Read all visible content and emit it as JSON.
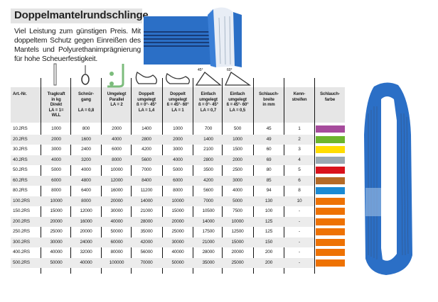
{
  "title": "Doppelmantelrundschlinge",
  "description": "Viel Leistung zum günstigen Preis. Mit doppeltem Schutz gegen Einreißen des Mantels und Polyurethanimprägnierung für hohe Scheuerfestigkeit.",
  "headers": [
    {
      "lines": [
        "Art.-Nr."
      ],
      "icon": ""
    },
    {
      "lines": [
        "Tragkraft",
        "in kg",
        "Direkt",
        "LA = 1=",
        "WLL"
      ],
      "icon": "straight-lift-icon"
    },
    {
      "lines": [
        "Schnür-",
        "gang",
        "",
        "LA = 0,8"
      ],
      "icon": "choke-hitch-icon"
    },
    {
      "lines": [
        "Umgelegt",
        "Parallel",
        "LA = 2"
      ],
      "icon": "parallel-basket-icon"
    },
    {
      "lines": [
        "Doppelt",
        "umgelegt",
        "ß = 0°- 45°",
        "LA = 1,4"
      ],
      "icon": "double-basket-45-icon"
    },
    {
      "lines": [
        "Doppelt",
        "umgelegt",
        "ß = 45°- 60°",
        "LA = 1"
      ],
      "icon": "double-basket-60-icon"
    },
    {
      "lines": [
        "Einfach",
        "umgelegt",
        "ß = 0°- 45°",
        "LA = 0,7"
      ],
      "icon": "single-basket-45-icon"
    },
    {
      "lines": [
        "Einfach",
        "umgelegt",
        "ß = 45°- 60°",
        "LA = 0,5"
      ],
      "icon": "single-basket-60-icon"
    },
    {
      "lines": [
        "Schlauch-",
        "breite",
        "in mm"
      ],
      "icon": ""
    },
    {
      "lines": [
        "Kenn-",
        "streifen"
      ],
      "icon": ""
    },
    {
      "lines": [
        "Schlauch-",
        "farbe"
      ],
      "icon": ""
    }
  ],
  "rows": [
    {
      "cells": [
        "10.2RS",
        "1000",
        "800",
        "2000",
        "1400",
        "1000",
        "700",
        "500",
        "45",
        "1"
      ],
      "color": "#a64b9c"
    },
    {
      "cells": [
        "20.2RS",
        "2000",
        "1600",
        "4000",
        "2800",
        "2000",
        "1400",
        "1000",
        "49",
        "2"
      ],
      "color": "#6cb52d"
    },
    {
      "cells": [
        "30.2RS",
        "3000",
        "2400",
        "6000",
        "4200",
        "3000",
        "2100",
        "1500",
        "60",
        "3"
      ],
      "color": "#ffdd00"
    },
    {
      "cells": [
        "40.2RS",
        "4000",
        "3200",
        "8000",
        "5600",
        "4000",
        "2800",
        "2000",
        "69",
        "4"
      ],
      "color": "#9aa8b2"
    },
    {
      "cells": [
        "50.2RS",
        "5000",
        "4000",
        "10000",
        "7000",
        "5000",
        "3500",
        "2500",
        "80",
        "5"
      ],
      "color": "#d9121b"
    },
    {
      "cells": [
        "60.2RS",
        "6000",
        "4800",
        "12000",
        "8400",
        "6000",
        "4200",
        "3000",
        "85",
        "6"
      ],
      "color": "#b46a26"
    },
    {
      "cells": [
        "80.2RS",
        "8000",
        "6400",
        "16000",
        "11200",
        "8000",
        "5600",
        "4000",
        "94",
        "8"
      ],
      "color": "#1a8ad4"
    },
    {
      "cells": [
        "100.2RS",
        "10000",
        "8000",
        "20000",
        "14000",
        "10000",
        "7000",
        "5000",
        "130",
        "10"
      ],
      "color": "#ee7203"
    },
    {
      "cells": [
        "150.2RS",
        "15000",
        "12000",
        "30000",
        "21000",
        "15000",
        "10500",
        "7500",
        "100",
        "-"
      ],
      "color": "#ee7203"
    },
    {
      "cells": [
        "200.2RS",
        "20000",
        "16000",
        "40000",
        "28000",
        "20000",
        "14000",
        "10000",
        "125",
        "-"
      ],
      "color": "#ee7203"
    },
    {
      "cells": [
        "250.2RS",
        "25000",
        "20000",
        "50000",
        "35000",
        "25000",
        "17500",
        "12500",
        "125",
        "-"
      ],
      "color": "#ee7203"
    },
    {
      "cells": [
        "300.2RS",
        "30000",
        "24000",
        "60000",
        "42000",
        "30000",
        "21000",
        "15000",
        "150",
        "-"
      ],
      "color": "#ee7203"
    },
    {
      "cells": [
        "400.2RS",
        "40000",
        "32000",
        "80000",
        "56000",
        "40000",
        "28000",
        "20000",
        "200",
        "-"
      ],
      "color": "#ee7203"
    },
    {
      "cells": [
        "500.2RS",
        "50000",
        "40000",
        "100000",
        "70000",
        "50000",
        "35000",
        "25000",
        "200",
        "-"
      ],
      "color": "#ee7203"
    }
  ],
  "colors": {
    "sling_blue": "#2b6fc6",
    "header_gray": "#e6e6e6"
  }
}
